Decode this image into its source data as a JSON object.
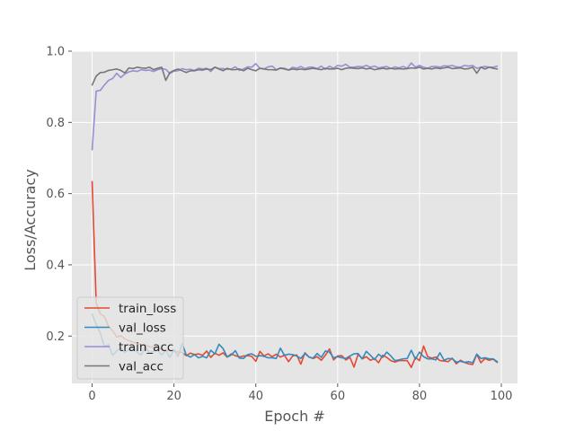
{
  "chart_data": {
    "type": "line",
    "title": "",
    "xlabel": "Epoch #",
    "ylabel": "Loss/Accuracy",
    "xlim": [
      -4.95,
      103.95
    ],
    "ylim": [
      0.067,
      1.0
    ],
    "xticks": [
      0,
      20,
      40,
      60,
      80,
      100
    ],
    "yticks": [
      0.2,
      0.4,
      0.6,
      0.8,
      1.0
    ],
    "xtick_labels": [
      "0",
      "20",
      "40",
      "60",
      "80",
      "100"
    ],
    "ytick_labels": [
      "0.2",
      "0.4",
      "0.6",
      "0.8",
      "1.0"
    ],
    "grid": true,
    "legend_position": "lower-left",
    "x": [
      0,
      1,
      2,
      3,
      4,
      5,
      6,
      7,
      8,
      9,
      10,
      11,
      12,
      13,
      14,
      15,
      16,
      17,
      18,
      19,
      20,
      21,
      22,
      23,
      24,
      25,
      26,
      27,
      28,
      29,
      30,
      31,
      32,
      33,
      34,
      35,
      36,
      37,
      38,
      39,
      40,
      41,
      42,
      43,
      44,
      45,
      46,
      47,
      48,
      49,
      50,
      51,
      52,
      53,
      54,
      55,
      56,
      57,
      58,
      59,
      60,
      61,
      62,
      63,
      64,
      65,
      66,
      67,
      68,
      69,
      70,
      71,
      72,
      73,
      74,
      75,
      76,
      77,
      78,
      79,
      80,
      81,
      82,
      83,
      84,
      85,
      86,
      87,
      88,
      89,
      90,
      91,
      92,
      93,
      94,
      95,
      96,
      97,
      98,
      99
    ],
    "series": [
      {
        "name": "train_loss",
        "color": "#E24A33",
        "values": [
          0.634,
          0.292,
          0.262,
          0.255,
          0.228,
          0.215,
          0.198,
          0.201,
          0.192,
          0.187,
          0.183,
          0.18,
          0.176,
          0.175,
          0.17,
          0.169,
          0.166,
          0.164,
          0.16,
          0.159,
          0.157,
          0.155,
          0.154,
          0.145,
          0.152,
          0.148,
          0.15,
          0.146,
          0.158,
          0.14,
          0.152,
          0.146,
          0.153,
          0.141,
          0.15,
          0.145,
          0.141,
          0.144,
          0.145,
          0.143,
          0.129,
          0.157,
          0.144,
          0.15,
          0.142,
          0.149,
          0.141,
          0.146,
          0.128,
          0.144,
          0.147,
          0.121,
          0.153,
          0.141,
          0.137,
          0.142,
          0.132,
          0.146,
          0.164,
          0.133,
          0.144,
          0.145,
          0.133,
          0.14,
          0.113,
          0.149,
          0.136,
          0.142,
          0.132,
          0.137,
          0.125,
          0.146,
          0.14,
          0.131,
          0.127,
          0.131,
          0.131,
          0.131,
          0.112,
          0.14,
          0.131,
          0.172,
          0.142,
          0.138,
          0.141,
          0.131,
          0.13,
          0.128,
          0.138,
          0.122,
          0.132,
          0.126,
          0.122,
          0.12,
          0.149,
          0.125,
          0.137,
          0.132,
          0.135,
          0.126
        ]
      },
      {
        "name": "val_loss",
        "color": "#348ABD",
        "values": [
          0.262,
          0.232,
          0.209,
          0.17,
          0.176,
          0.146,
          0.158,
          0.167,
          0.154,
          0.162,
          0.168,
          0.154,
          0.147,
          0.17,
          0.152,
          0.158,
          0.16,
          0.147,
          0.16,
          0.14,
          0.162,
          0.143,
          0.179,
          0.147,
          0.141,
          0.148,
          0.139,
          0.143,
          0.139,
          0.16,
          0.15,
          0.177,
          0.165,
          0.141,
          0.147,
          0.159,
          0.138,
          0.137,
          0.148,
          0.15,
          0.143,
          0.145,
          0.143,
          0.139,
          0.139,
          0.137,
          0.166,
          0.146,
          0.149,
          0.148,
          0.144,
          0.137,
          0.151,
          0.141,
          0.138,
          0.151,
          0.14,
          0.158,
          0.155,
          0.139,
          0.142,
          0.139,
          0.137,
          0.144,
          0.15,
          0.151,
          0.136,
          0.157,
          0.146,
          0.134,
          0.149,
          0.14,
          0.155,
          0.144,
          0.131,
          0.133,
          0.136,
          0.137,
          0.16,
          0.135,
          0.155,
          0.142,
          0.136,
          0.136,
          0.133,
          0.153,
          0.132,
          0.137,
          0.136,
          0.127,
          0.129,
          0.126,
          0.128,
          0.125,
          0.149,
          0.137,
          0.139,
          0.136,
          0.136,
          0.128
        ]
      },
      {
        "name": "train_acc",
        "color": "#988ED5",
        "values": [
          0.723,
          0.888,
          0.89,
          0.905,
          0.918,
          0.923,
          0.938,
          0.926,
          0.936,
          0.942,
          0.945,
          0.943,
          0.948,
          0.946,
          0.947,
          0.943,
          0.948,
          0.951,
          0.949,
          0.937,
          0.944,
          0.945,
          0.951,
          0.948,
          0.949,
          0.946,
          0.952,
          0.95,
          0.952,
          0.943,
          0.955,
          0.951,
          0.951,
          0.949,
          0.95,
          0.956,
          0.946,
          0.95,
          0.956,
          0.955,
          0.965,
          0.952,
          0.95,
          0.956,
          0.958,
          0.948,
          0.953,
          0.952,
          0.947,
          0.955,
          0.952,
          0.957,
          0.951,
          0.955,
          0.955,
          0.951,
          0.958,
          0.949,
          0.958,
          0.952,
          0.96,
          0.958,
          0.963,
          0.955,
          0.955,
          0.957,
          0.956,
          0.96,
          0.955,
          0.958,
          0.953,
          0.955,
          0.957,
          0.951,
          0.956,
          0.953,
          0.957,
          0.952,
          0.967,
          0.955,
          0.96,
          0.955,
          0.952,
          0.957,
          0.957,
          0.955,
          0.959,
          0.958,
          0.96,
          0.956,
          0.955,
          0.96,
          0.958,
          0.96,
          0.952,
          0.955,
          0.957,
          0.955,
          0.955,
          0.958
        ]
      },
      {
        "name": "val_acc",
        "color": "#777777",
        "values": [
          0.905,
          0.93,
          0.94,
          0.941,
          0.946,
          0.948,
          0.95,
          0.946,
          0.939,
          0.953,
          0.951,
          0.955,
          0.953,
          0.952,
          0.955,
          0.948,
          0.952,
          0.955,
          0.918,
          0.94,
          0.946,
          0.95,
          0.945,
          0.94,
          0.945,
          0.945,
          0.948,
          0.947,
          0.95,
          0.948,
          0.955,
          0.95,
          0.945,
          0.952,
          0.948,
          0.948,
          0.95,
          0.945,
          0.952,
          0.948,
          0.945,
          0.952,
          0.95,
          0.948,
          0.948,
          0.947,
          0.952,
          0.95,
          0.947,
          0.95,
          0.948,
          0.95,
          0.948,
          0.95,
          0.952,
          0.95,
          0.948,
          0.952,
          0.95,
          0.95,
          0.952,
          0.948,
          0.952,
          0.953,
          0.952,
          0.951,
          0.953,
          0.95,
          0.952,
          0.948,
          0.95,
          0.952,
          0.95,
          0.952,
          0.95,
          0.951,
          0.95,
          0.951,
          0.953,
          0.952,
          0.955,
          0.95,
          0.952,
          0.95,
          0.953,
          0.951,
          0.953,
          0.955,
          0.951,
          0.952,
          0.953,
          0.95,
          0.951,
          0.955,
          0.938,
          0.955,
          0.95,
          0.955,
          0.952,
          0.95
        ]
      }
    ]
  }
}
